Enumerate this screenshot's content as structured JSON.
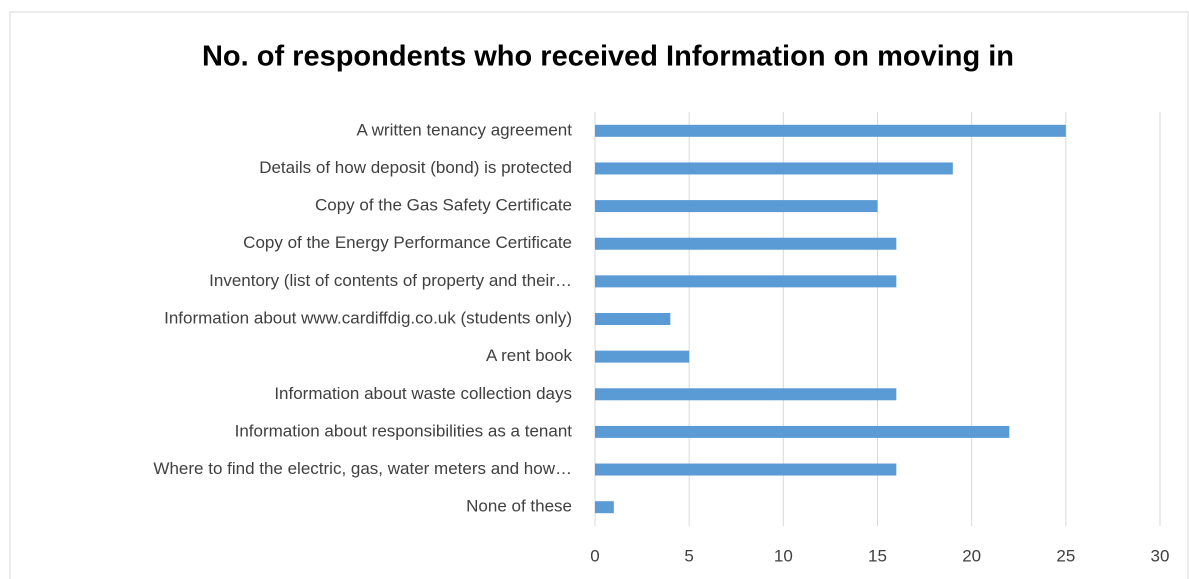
{
  "chart_data": {
    "type": "bar",
    "orientation": "horizontal",
    "title": "No. of respondents who received Information  on moving in",
    "categories": [
      "A written tenancy agreement",
      "Details of how deposit (bond) is protected",
      "Copy of the Gas Safety Certificate",
      "Copy of the Energy Performance Certificate",
      "Inventory (list of contents of property and their…",
      "Information about www.cardiffdig.co.uk (students only)",
      "A rent book",
      "Information about waste collection days",
      "Information about responsibilities as a tenant",
      "Where to find the electric, gas, water meters and how…",
      "None of these"
    ],
    "values": [
      25,
      19,
      15,
      16,
      16,
      4,
      5,
      16,
      22,
      16,
      1
    ],
    "color": "#5b9bd5",
    "xlim": [
      0,
      30
    ],
    "xticks": [
      0,
      5,
      10,
      15,
      20,
      25,
      30
    ],
    "grid": true
  }
}
